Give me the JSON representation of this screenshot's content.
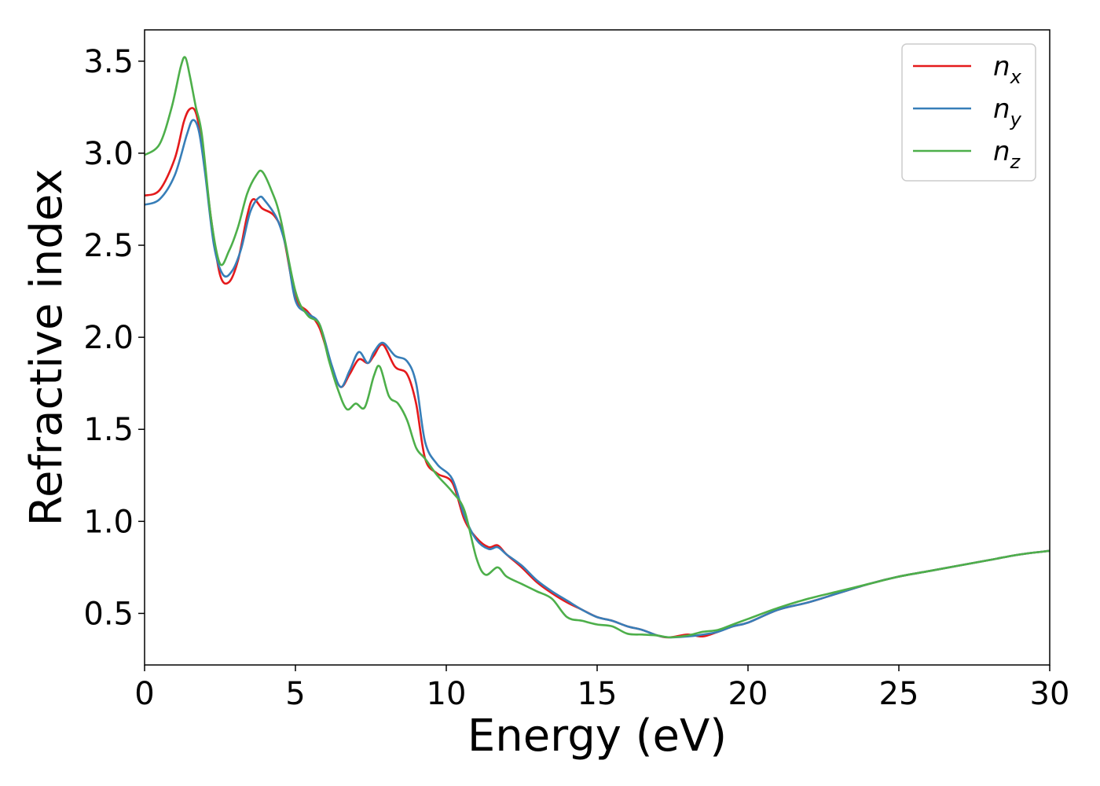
{
  "chart_data": {
    "type": "line",
    "title": "",
    "xlabel": "Energy (eV)",
    "ylabel": "Refractive index",
    "xlim": [
      0,
      30
    ],
    "ylim": [
      0.22,
      3.67
    ],
    "xticks": [
      0,
      5,
      10,
      15,
      20,
      25,
      30
    ],
    "xtick_labels": [
      "0",
      "5",
      "10",
      "15",
      "20",
      "25",
      "30"
    ],
    "yticks": [
      0.5,
      1.0,
      1.5,
      2.0,
      2.5,
      3.0,
      3.5
    ],
    "ytick_labels": [
      "0.5",
      "1.0",
      "1.5",
      "2.0",
      "2.5",
      "3.0",
      "3.5"
    ],
    "grid": false,
    "legend_position": "top-right",
    "series": [
      {
        "name": "n_x",
        "legend_base": "n",
        "legend_sub": "x",
        "color": "#e41a1c",
        "x": [
          0,
          0.5,
          1.0,
          1.3,
          1.5,
          1.7,
          1.9,
          2.2,
          2.5,
          2.8,
          3.1,
          3.4,
          3.6,
          3.9,
          4.3,
          4.6,
          5.0,
          5.4,
          5.8,
          6.2,
          6.5,
          6.8,
          7.1,
          7.4,
          7.6,
          7.9,
          8.3,
          8.7,
          9.0,
          9.3,
          9.7,
          10.2,
          10.6,
          11.0,
          11.4,
          11.7,
          12.0,
          12.5,
          13.0,
          13.5,
          14.0,
          14.5,
          15.0,
          15.5,
          16.0,
          16.5,
          17.0,
          17.4,
          18.0,
          18.5,
          19.0,
          19.5,
          20.0,
          21.0,
          22.0,
          23.0,
          24.0,
          25.0,
          26.0,
          27.0,
          28.0,
          29.0,
          30.0
        ],
        "y": [
          2.77,
          2.8,
          2.97,
          3.17,
          3.24,
          3.22,
          3.05,
          2.65,
          2.34,
          2.3,
          2.42,
          2.66,
          2.75,
          2.7,
          2.66,
          2.55,
          2.22,
          2.14,
          2.05,
          1.84,
          1.73,
          1.8,
          1.88,
          1.86,
          1.9,
          1.96,
          1.84,
          1.8,
          1.64,
          1.34,
          1.26,
          1.21,
          1.01,
          0.91,
          0.86,
          0.87,
          0.82,
          0.75,
          0.67,
          0.61,
          0.56,
          0.52,
          0.48,
          0.46,
          0.43,
          0.41,
          0.38,
          0.37,
          0.385,
          0.375,
          0.4,
          0.43,
          0.45,
          0.52,
          0.56,
          0.61,
          0.66,
          0.7,
          0.73,
          0.76,
          0.79,
          0.82,
          0.84
        ]
      },
      {
        "name": "n_y",
        "legend_base": "n",
        "legend_sub": "y",
        "color": "#377eb8",
        "x": [
          0,
          0.5,
          1.0,
          1.4,
          1.6,
          1.8,
          2.0,
          2.3,
          2.6,
          2.9,
          3.2,
          3.5,
          3.8,
          4.0,
          4.4,
          4.7,
          5.0,
          5.4,
          5.8,
          6.2,
          6.5,
          6.8,
          7.1,
          7.4,
          7.6,
          7.9,
          8.3,
          8.7,
          9.0,
          9.3,
          9.7,
          10.2,
          10.6,
          11.0,
          11.4,
          11.7,
          12.0,
          12.5,
          13.0,
          13.5,
          14.0,
          14.5,
          15.0,
          15.5,
          16.0,
          16.5,
          17.0,
          17.4,
          18.0,
          18.5,
          19.0,
          19.5,
          20.0,
          21.0,
          22.0,
          23.0,
          24.0,
          25.0,
          26.0,
          27.0,
          28.0,
          29.0,
          30.0
        ],
        "y": [
          2.72,
          2.75,
          2.88,
          3.1,
          3.18,
          3.12,
          2.9,
          2.5,
          2.34,
          2.36,
          2.48,
          2.68,
          2.76,
          2.74,
          2.64,
          2.48,
          2.2,
          2.13,
          2.07,
          1.85,
          1.73,
          1.82,
          1.92,
          1.86,
          1.92,
          1.97,
          1.9,
          1.87,
          1.75,
          1.43,
          1.31,
          1.23,
          1.03,
          0.9,
          0.85,
          0.86,
          0.82,
          0.76,
          0.68,
          0.62,
          0.57,
          0.52,
          0.48,
          0.46,
          0.43,
          0.41,
          0.38,
          0.37,
          0.375,
          0.385,
          0.4,
          0.43,
          0.45,
          0.52,
          0.56,
          0.61,
          0.66,
          0.7,
          0.73,
          0.76,
          0.79,
          0.82,
          0.84
        ]
      },
      {
        "name": "n_z",
        "legend_base": "n",
        "legend_sub": "z",
        "color": "#4daf4a",
        "x": [
          0,
          0.5,
          0.9,
          1.2,
          1.35,
          1.5,
          1.7,
          1.9,
          2.2,
          2.5,
          2.8,
          3.1,
          3.4,
          3.7,
          3.9,
          4.2,
          4.5,
          5.0,
          5.4,
          5.8,
          6.1,
          6.4,
          6.7,
          7.0,
          7.3,
          7.6,
          7.8,
          8.1,
          8.4,
          8.7,
          9.0,
          9.3,
          9.7,
          10.2,
          10.6,
          11.0,
          11.3,
          11.7,
          12.0,
          12.5,
          13.0,
          13.5,
          14.0,
          14.5,
          15.0,
          15.5,
          16.0,
          16.5,
          17.0,
          17.4,
          18.0,
          18.5,
          19.0,
          19.5,
          20.0,
          21.0,
          22.0,
          23.0,
          24.0,
          25.0,
          26.0,
          27.0,
          28.0,
          29.0,
          30.0
        ],
        "y": [
          2.99,
          3.05,
          3.25,
          3.47,
          3.52,
          3.42,
          3.25,
          3.1,
          2.65,
          2.4,
          2.47,
          2.6,
          2.78,
          2.88,
          2.9,
          2.8,
          2.65,
          2.25,
          2.12,
          2.07,
          1.88,
          1.72,
          1.61,
          1.64,
          1.62,
          1.79,
          1.84,
          1.68,
          1.64,
          1.55,
          1.4,
          1.34,
          1.25,
          1.16,
          1.06,
          0.8,
          0.71,
          0.75,
          0.7,
          0.66,
          0.62,
          0.58,
          0.48,
          0.46,
          0.44,
          0.43,
          0.39,
          0.385,
          0.38,
          0.37,
          0.38,
          0.4,
          0.41,
          0.44,
          0.47,
          0.53,
          0.58,
          0.62,
          0.66,
          0.7,
          0.73,
          0.76,
          0.79,
          0.82,
          0.84
        ]
      }
    ]
  }
}
